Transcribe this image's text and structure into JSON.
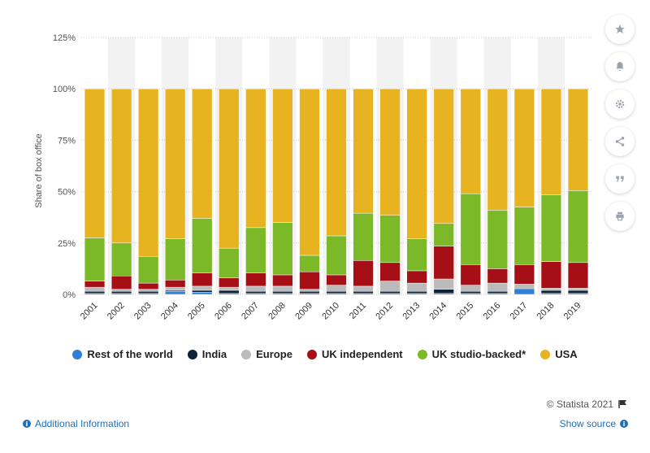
{
  "chart_data": {
    "type": "bar",
    "stacked": true,
    "ylabel": "Share of box office",
    "ylim": [
      0,
      125
    ],
    "yticks": [
      "0%",
      "25%",
      "50%",
      "75%",
      "100%",
      "125%"
    ],
    "ytick_values": [
      0,
      25,
      50,
      75,
      100,
      125
    ],
    "grid": true,
    "legend_position": "bottom",
    "categories": [
      "2001",
      "2002",
      "2003",
      "2004",
      "2005",
      "2006",
      "2007",
      "2008",
      "2009",
      "2010",
      "2011",
      "2012",
      "2013",
      "2014",
      "2015",
      "2016",
      "2017",
      "2018",
      "2019"
    ],
    "series": [
      {
        "name": "Rest of the world",
        "color": "#2f7ed8",
        "values": [
          0.5,
          0.5,
          0.5,
          1.5,
          1,
          0.5,
          0.5,
          0.5,
          0.5,
          0.5,
          0.5,
          0.5,
          0.5,
          0.5,
          0.5,
          0.5,
          2.5,
          0.5,
          0.5
        ]
      },
      {
        "name": "India",
        "color": "#0d233a",
        "values": [
          1,
          1,
          1,
          0.5,
          1,
          1.5,
          1,
          1,
          1,
          1,
          1,
          1,
          1,
          2,
          1,
          1,
          0.5,
          1.5,
          1.5
        ]
      },
      {
        "name": "Europe",
        "color": "#bbbbbb",
        "values": [
          2,
          1,
          1,
          1.5,
          2,
          1.5,
          2.5,
          2.5,
          1,
          3,
          2.5,
          5,
          4,
          5,
          3,
          4,
          2,
          1,
          1
        ]
      },
      {
        "name": "UK independent",
        "color": "#a50f15",
        "values": [
          3,
          6.5,
          3,
          3.5,
          6.5,
          4.5,
          6.5,
          5.5,
          8.5,
          5,
          12.5,
          9,
          6,
          16,
          10,
          7,
          9.5,
          13,
          12.5
        ]
      },
      {
        "name": "UK studio-backed*",
        "color": "#7cb928",
        "values": [
          21,
          16,
          13,
          20,
          26.5,
          14.5,
          22,
          25.5,
          8,
          19,
          23,
          23,
          15.5,
          11,
          34.5,
          28.5,
          28,
          32.5,
          35
        ]
      },
      {
        "name": "USA",
        "color": "#e8b321",
        "values": [
          72.5,
          75,
          81.5,
          73,
          63,
          77.5,
          67.5,
          65,
          81,
          71.5,
          60.5,
          61.5,
          73,
          65.5,
          51,
          59,
          57.5,
          51.5,
          49.5
        ]
      }
    ]
  },
  "toolbar": {
    "buttons": [
      {
        "name": "star-icon"
      },
      {
        "name": "bell-icon"
      },
      {
        "name": "gear-icon"
      },
      {
        "name": "share-icon"
      },
      {
        "name": "quote-icon"
      },
      {
        "name": "print-icon"
      }
    ]
  },
  "footer": {
    "credits": "© Statista 2021",
    "additional_info": "Additional Information",
    "show_source": "Show source"
  }
}
